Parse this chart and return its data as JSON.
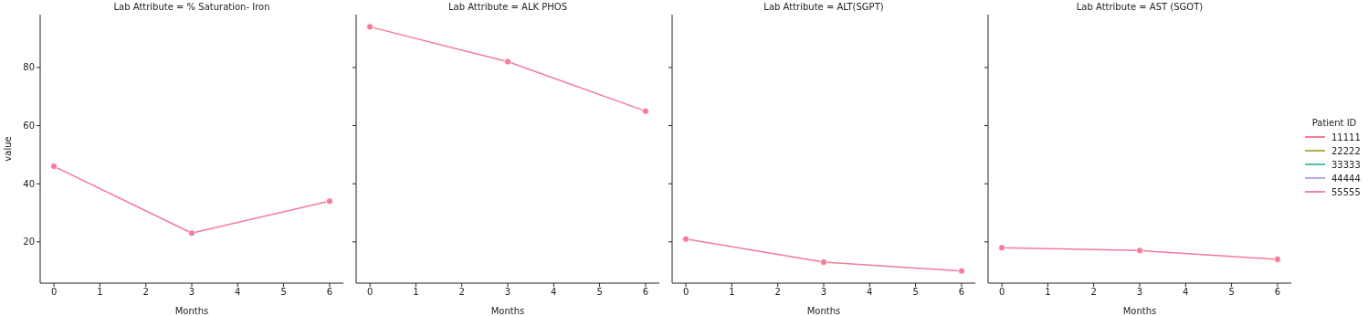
{
  "chart_data": [
    {
      "type": "line",
      "title": "Lab Attribute = % Saturation- Iron",
      "xlabel": "Months",
      "ylabel": "value",
      "x": [
        0,
        3,
        6
      ],
      "xlim": [
        -0.3,
        6.3
      ],
      "xticks": [
        0,
        1,
        2,
        3,
        4,
        5,
        6
      ],
      "ylim": [
        5.8,
        98.2
      ],
      "yticks": [
        20,
        40,
        60,
        80
      ],
      "marker": "circle",
      "line_style": "solid",
      "series": [
        {
          "color": "#f77189",
          "values": [
            null,
            null,
            null
          ]
        },
        {
          "color": "#a8a63c",
          "values": [
            null,
            null,
            null
          ]
        },
        {
          "color": "#3bb9a4",
          "values": [
            null,
            null,
            null
          ]
        },
        {
          "color": "#ad9cf0",
          "values": [
            null,
            null,
            null
          ]
        },
        {
          "color": "#f47a98",
          "values": [
            46,
            23,
            34
          ]
        }
      ]
    },
    {
      "type": "line",
      "title": "Lab Attribute = ALK PHOS",
      "xlabel": "Months",
      "x": [
        0,
        3,
        6
      ],
      "xlim": [
        -0.3,
        6.3
      ],
      "xticks": [
        0,
        1,
        2,
        3,
        4,
        5,
        6
      ],
      "ylim": [
        5.8,
        98.2
      ],
      "yticks": [
        20,
        40,
        60,
        80
      ],
      "tick_labels": "x",
      "marker": "circle",
      "line_style": "solid",
      "series": [
        {
          "color": "#f77189",
          "values": [
            null,
            null,
            null
          ]
        },
        {
          "color": "#a8a63c",
          "values": [
            null,
            null,
            null
          ]
        },
        {
          "color": "#3bb9a4",
          "values": [
            null,
            null,
            null
          ]
        },
        {
          "color": "#ad9cf0",
          "values": [
            null,
            null,
            null
          ]
        },
        {
          "color": "#f47a98",
          "values": [
            94,
            82,
            65
          ]
        }
      ]
    },
    {
      "type": "line",
      "title": "Lab Attribute = ALT(SGPT)",
      "xlabel": "Months",
      "x": [
        0,
        3,
        6
      ],
      "xlim": [
        -0.3,
        6.3
      ],
      "xticks": [
        0,
        1,
        2,
        3,
        4,
        5,
        6
      ],
      "ylim": [
        5.8,
        98.2
      ],
      "yticks": [
        20,
        40,
        60,
        80
      ],
      "tick_labels": "x",
      "marker": "circle",
      "line_style": "solid",
      "series": [
        {
          "color": "#f77189",
          "values": [
            null,
            null,
            null
          ]
        },
        {
          "color": "#a8a63c",
          "values": [
            null,
            null,
            null
          ]
        },
        {
          "color": "#3bb9a4",
          "values": [
            null,
            null,
            null
          ]
        },
        {
          "color": "#ad9cf0",
          "values": [
            null,
            null,
            null
          ]
        },
        {
          "color": "#f47a98",
          "values": [
            21,
            13,
            10
          ]
        }
      ]
    },
    {
      "type": "line",
      "title": "Lab Attribute = AST (SGOT)",
      "xlabel": "Months",
      "x": [
        0,
        3,
        6
      ],
      "xlim": [
        -0.3,
        6.3
      ],
      "xticks": [
        0,
        1,
        2,
        3,
        4,
        5,
        6
      ],
      "ylim": [
        5.8,
        98.2
      ],
      "yticks": [
        20,
        40,
        60,
        80
      ],
      "tick_labels": "x",
      "marker": "circle",
      "line_style": "solid",
      "legend": "right",
      "legend_title": "Patient ID",
      "series": [
        {
          "name": "11111",
          "color": "#f77189",
          "values": [
            null,
            null,
            null
          ]
        },
        {
          "name": "22222",
          "color": "#a8a63c",
          "values": [
            null,
            null,
            null
          ]
        },
        {
          "name": "33333",
          "color": "#3bb9a4",
          "values": [
            null,
            null,
            null
          ]
        },
        {
          "name": "44444",
          "color": "#ad9cf0",
          "values": [
            null,
            null,
            null
          ]
        },
        {
          "name": "55555",
          "color": "#f47a98",
          "values": [
            18,
            17,
            14
          ]
        }
      ]
    }
  ]
}
